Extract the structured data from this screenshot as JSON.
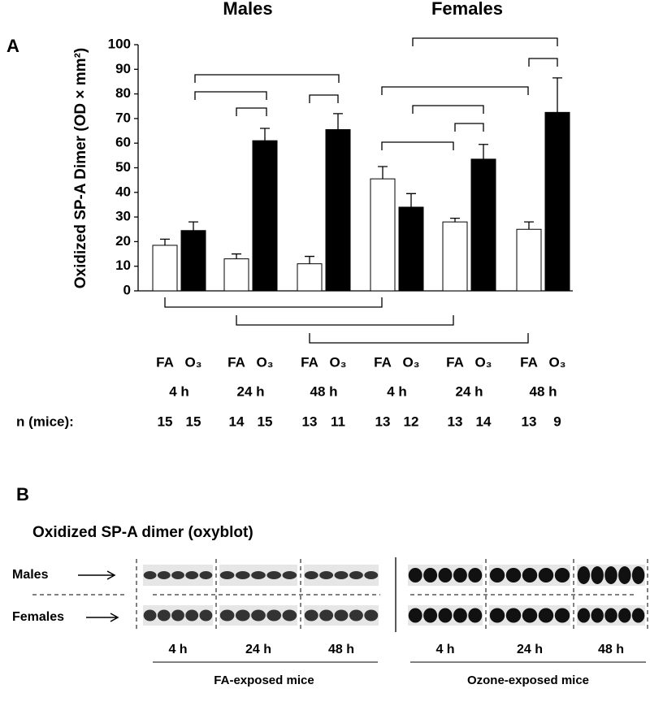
{
  "chart_data": {
    "type": "bar",
    "panel_label": "A",
    "ylabel": "Oxidized SP-A Dimer (OD × mm²)",
    "groups": [
      "Males",
      "Females"
    ],
    "categories": [
      "4 h",
      "24 h",
      "48 h",
      "4 h",
      "24 h",
      "48 h"
    ],
    "n_label": "n (mice):",
    "series": [
      {
        "name": "FA",
        "color": "#ffffff",
        "values": [
          18.5,
          13,
          11,
          45.5,
          28,
          25
        ],
        "errors": [
          2.5,
          2,
          3,
          5,
          1.5,
          3
        ],
        "n": [
          15,
          14,
          13,
          13,
          13,
          13
        ]
      },
      {
        "name": "O₃",
        "color": "#000000",
        "values": [
          24.5,
          61,
          65.5,
          34,
          53.5,
          72.5
        ],
        "errors": [
          3.5,
          5,
          6.5,
          5.5,
          6,
          14
        ],
        "n": [
          15,
          15,
          11,
          12,
          14,
          9
        ]
      }
    ],
    "ylim": [
      0,
      100
    ],
    "yticks": [
      0,
      10,
      20,
      30,
      40,
      50,
      60,
      70,
      80,
      90,
      100
    ]
  },
  "blot": {
    "panel_label": "B",
    "title": "Oxidized SP-A dimer (oxyblot)",
    "rows": [
      "Males",
      "Females"
    ],
    "times": [
      "4 h",
      "24 h",
      "48 h"
    ],
    "panels": [
      "FA-exposed mice",
      "Ozone-exposed mice"
    ]
  }
}
